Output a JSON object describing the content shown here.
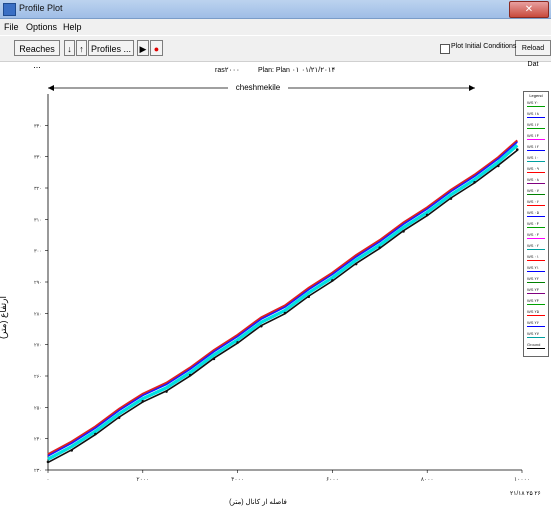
{
  "window": {
    "title": "Profile Plot",
    "close_symbol": "✕"
  },
  "menu": [
    "File",
    "Options",
    "Help"
  ],
  "toolbar": {
    "reaches_label": "Reaches ...",
    "sort_down": "↓",
    "sort_up": "↑",
    "profiles_label": "Profiles ...",
    "play_symbol": "▶",
    "record_symbol": "●",
    "plot_initial_label": "Plot Initial Conditions",
    "reload_label": "Reload Dat"
  },
  "plot": {
    "header_left": "ras۲۰۰۰",
    "header_right": "Plan: Plan ۰۱  ۰۱/۲۱/۲۰۱۴",
    "reach_label": "cheshmekile",
    "ylabel": "ارتفاع (متر)",
    "xlabel": "(متر) فاصله از کانال",
    "corner_label": "۲۱/۱۸ ۲۵ ۲۶",
    "legend_title": "Legend",
    "colors": {
      "accent": "#1a1aff",
      "wse_red": "#e02020",
      "wse_cyan": "#00e0e0",
      "ground": "#101010"
    }
  },
  "chart_data": {
    "type": "line",
    "title": "",
    "xlabel": "(متر) فاصله از کانال",
    "ylabel": "ارتفاع (متر)",
    "x_ticks": [
      "۰",
      "۲۰۰۰",
      "۴۰۰۰",
      "۶۰۰۰",
      "۸۰۰۰",
      "۱۰۰۰۰"
    ],
    "y_ticks": [
      "۲۳۰",
      "۲۴۰",
      "۲۵۰",
      "۲۶۰",
      "۲۷۰",
      "۲۸۰",
      "۲۹۰",
      "۳۰۰",
      "۳۱۰",
      "۳۲۰",
      "۳۳۰",
      "۳۴۰"
    ],
    "xlim": [
      0,
      10000
    ],
    "ylim": [
      230,
      345
    ],
    "series": [
      {
        "name": "",
        "color": "#101010",
        "x": [
          0,
          500,
          1000,
          1500,
          2000,
          2500,
          3000,
          3500,
          4000,
          4500,
          5000,
          5500,
          6000,
          6500,
          7000,
          7500,
          8000,
          8500,
          9000,
          9500,
          9900
        ],
        "y": [
          232.5,
          236,
          241,
          246,
          251,
          254,
          259,
          264,
          269,
          274,
          278,
          283,
          288,
          293,
          298,
          303,
          308,
          313,
          318,
          323,
          328
        ]
      },
      {
        "name": "",
        "color": "#e02020",
        "x": [
          0,
          500,
          1000,
          1500,
          2000,
          2500,
          3000,
          3500,
          4000,
          4500,
          5000,
          5500,
          6000,
          6500,
          7000,
          7500,
          8000,
          8500,
          9000,
          9500,
          9900
        ],
        "y": [
          235,
          238.5,
          243.5,
          248.5,
          253.5,
          256.5,
          261.5,
          266.5,
          271.5,
          276.5,
          280.5,
          285.5,
          290.5,
          295.5,
          300.5,
          305.5,
          310.5,
          315.5,
          320.5,
          325.5,
          331
        ]
      },
      {
        "name": "",
        "color": "#00e0e0",
        "x": [
          0,
          500,
          1000,
          1500,
          2000,
          2500,
          3000,
          3500,
          4000,
          4500,
          5000,
          5500,
          6000,
          6500,
          7000,
          7500,
          8000,
          8500,
          9000,
          9500,
          9900
        ],
        "y": [
          233.5,
          237,
          242,
          247,
          252,
          255,
          260,
          265,
          270,
          275,
          279,
          284,
          289,
          294,
          299,
          304,
          309,
          314,
          319,
          324,
          329.5
        ]
      },
      {
        "name": "",
        "color": "#1a1aff",
        "x": [
          0,
          500,
          1000,
          1500,
          2000,
          2500,
          3000,
          3500,
          4000,
          4500,
          5000,
          5500,
          6000,
          6500,
          7000,
          7500,
          8000,
          8500,
          9000,
          9500,
          9900
        ],
        "y": [
          234.5,
          238,
          243,
          248,
          253,
          256,
          261,
          266,
          271,
          276,
          280,
          285,
          290,
          295,
          300,
          305,
          310,
          315,
          320,
          325,
          330.5
        ]
      }
    ],
    "legend_placement": "right",
    "grid": false
  },
  "legend_items": [
    {
      "label": "WS ۲۰",
      "color": "#00a000"
    },
    {
      "label": "WS ۱۸",
      "color": "#0000ff"
    },
    {
      "label": "WS ۱۶",
      "color": "#00a000"
    },
    {
      "label": "WS ۱۴",
      "color": "#ff00ff"
    },
    {
      "label": "WS ۱۲",
      "color": "#0000ff"
    },
    {
      "label": "WS ۱۰",
      "color": "#00a0a0"
    },
    {
      "label": "WS ۰۹",
      "color": "#ff0000"
    },
    {
      "label": "WS ۰۸",
      "color": "#800080"
    },
    {
      "label": "WS ۰۷",
      "color": "#008000"
    },
    {
      "label": "WS ۰۶",
      "color": "#ff0000"
    },
    {
      "label": "WS ۰۵",
      "color": "#0000ff"
    },
    {
      "label": "WS ۰۴",
      "color": "#00a000"
    },
    {
      "label": "WS ۰۳",
      "color": "#ff00ff"
    },
    {
      "label": "WS ۰۲",
      "color": "#00a0a0"
    },
    {
      "label": "WS ۰۱",
      "color": "#ff0000"
    },
    {
      "label": "WS ۲۱",
      "color": "#0000ff"
    },
    {
      "label": "WS ۲۲",
      "color": "#008000"
    },
    {
      "label": "WS ۲۳",
      "color": "#800080"
    },
    {
      "label": "WS ۲۴",
      "color": "#00a000"
    },
    {
      "label": "WS ۲۵",
      "color": "#ff0000"
    },
    {
      "label": "WS ۲۶",
      "color": "#0000ff"
    },
    {
      "label": "WS ۲۷",
      "color": "#00a0a0"
    },
    {
      "label": "Ground",
      "color": "#000000"
    }
  ]
}
